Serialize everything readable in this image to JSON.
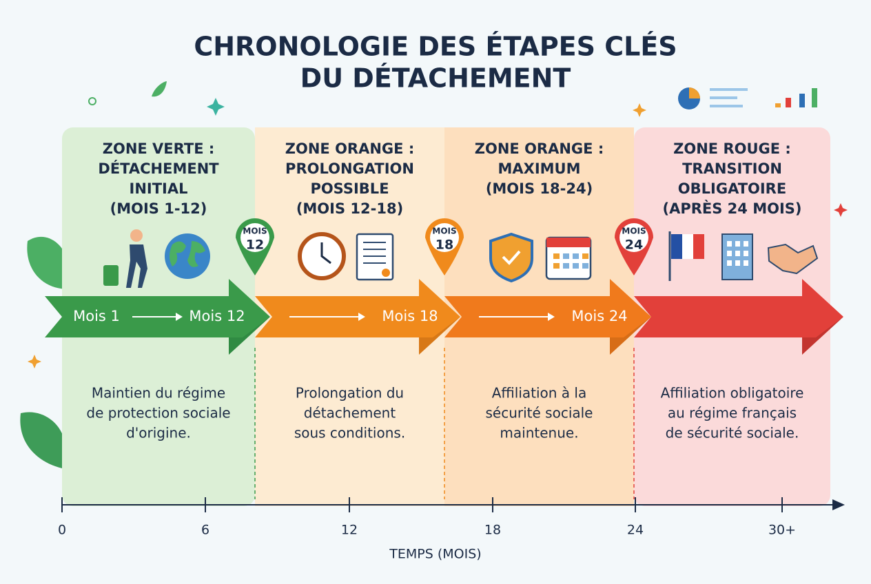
{
  "title": [
    "CHRONOLOGIE DES ÉTAPES CLÉS",
    "DU DÉTACHEMENT"
  ],
  "zones": [
    {
      "heading": [
        "ZONE VERTE :",
        "DÉTACHEMENT",
        "INITIAL",
        "(MOIS 1-12)"
      ],
      "arrow_labels": [
        "Mois 1",
        "Mois 12"
      ],
      "description": [
        "Maintien du régime",
        "de protection sociale",
        "d'origine."
      ]
    },
    {
      "heading": [
        "ZONE ORANGE :",
        "PROLONGATION",
        "POSSIBLE",
        "(MOIS 12-18)"
      ],
      "arrow_labels": [
        "Mois 18"
      ],
      "description": [
        "Prolongation du",
        "détachement",
        "sous conditions."
      ]
    },
    {
      "heading": [
        "ZONE ORANGE :",
        "MAXIMUM",
        "(MOIS 18-24)"
      ],
      "arrow_labels": [
        "Mois 24"
      ],
      "description": [
        "Affiliation à la",
        "sécurité sociale",
        "maintenue."
      ]
    },
    {
      "heading": [
        "ZONE ROUGE :",
        "TRANSITION",
        "OBLIGATOIRE",
        "(APRÈS 24 MOIS)"
      ],
      "description": [
        "Affiliation obligatoire",
        "au régime français",
        "de sécurité sociale."
      ]
    }
  ],
  "markers": [
    {
      "word": "MOIS",
      "number": "12"
    },
    {
      "word": "MOIS",
      "number": "18"
    },
    {
      "word": "MOIS",
      "number": "24"
    }
  ],
  "axis": {
    "ticks": [
      "0",
      "6",
      "12",
      "18",
      "24",
      "30+"
    ],
    "label": "TEMPS (MOIS)"
  }
}
